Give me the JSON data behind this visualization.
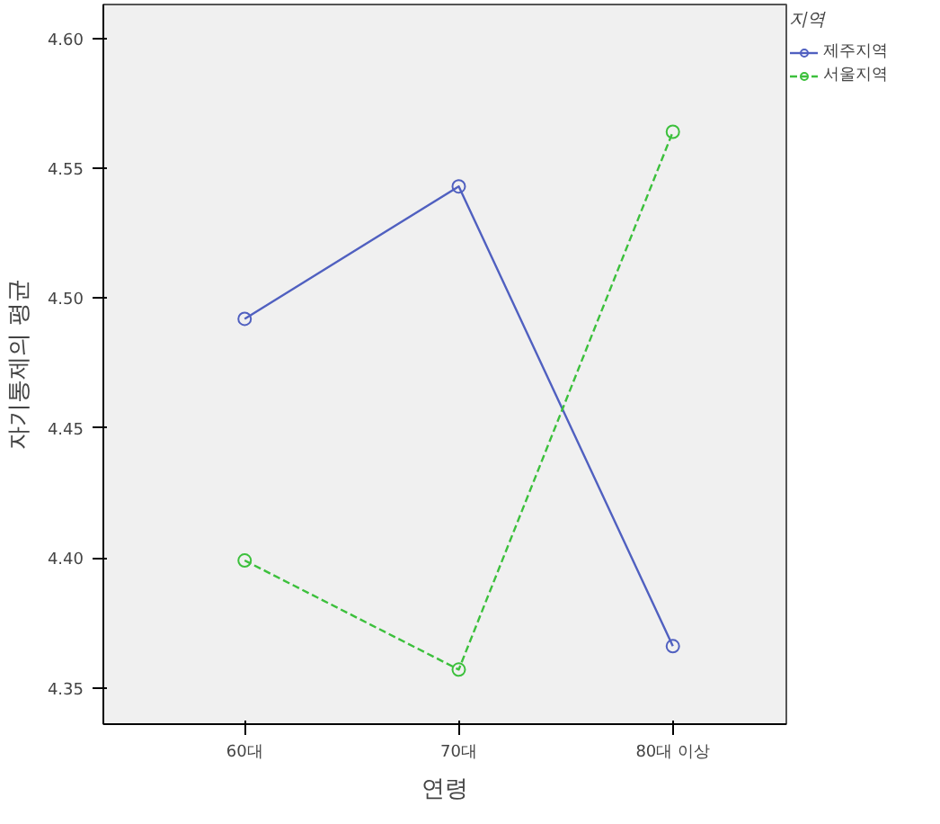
{
  "chart_data": {
    "type": "line",
    "xlabel": "연령",
    "ylabel": "자기통제의 평균",
    "legend_title": "지역",
    "categories": [
      "60대",
      "70대",
      "80대 이상"
    ],
    "series": [
      {
        "name": "제주지역",
        "color": "#5060c0",
        "values": [
          4.492,
          4.543,
          4.366
        ],
        "line_style": "solid"
      },
      {
        "name": "서울지역",
        "color": "#3cc03c",
        "values": [
          4.399,
          4.357,
          4.564
        ],
        "line_style": "dashed"
      }
    ],
    "ylim": [
      4.336,
      4.613
    ],
    "yticks": [
      {
        "value": 4.35,
        "label": "4.35"
      },
      {
        "value": 4.4,
        "label": "4.40"
      },
      {
        "value": 4.45,
        "label": "4.45"
      },
      {
        "value": 4.5,
        "label": "4.50"
      },
      {
        "value": 4.55,
        "label": "4.55"
      },
      {
        "value": 4.6,
        "label": "4.60"
      }
    ],
    "grid": false,
    "legend": "top right",
    "marker": "circle"
  }
}
